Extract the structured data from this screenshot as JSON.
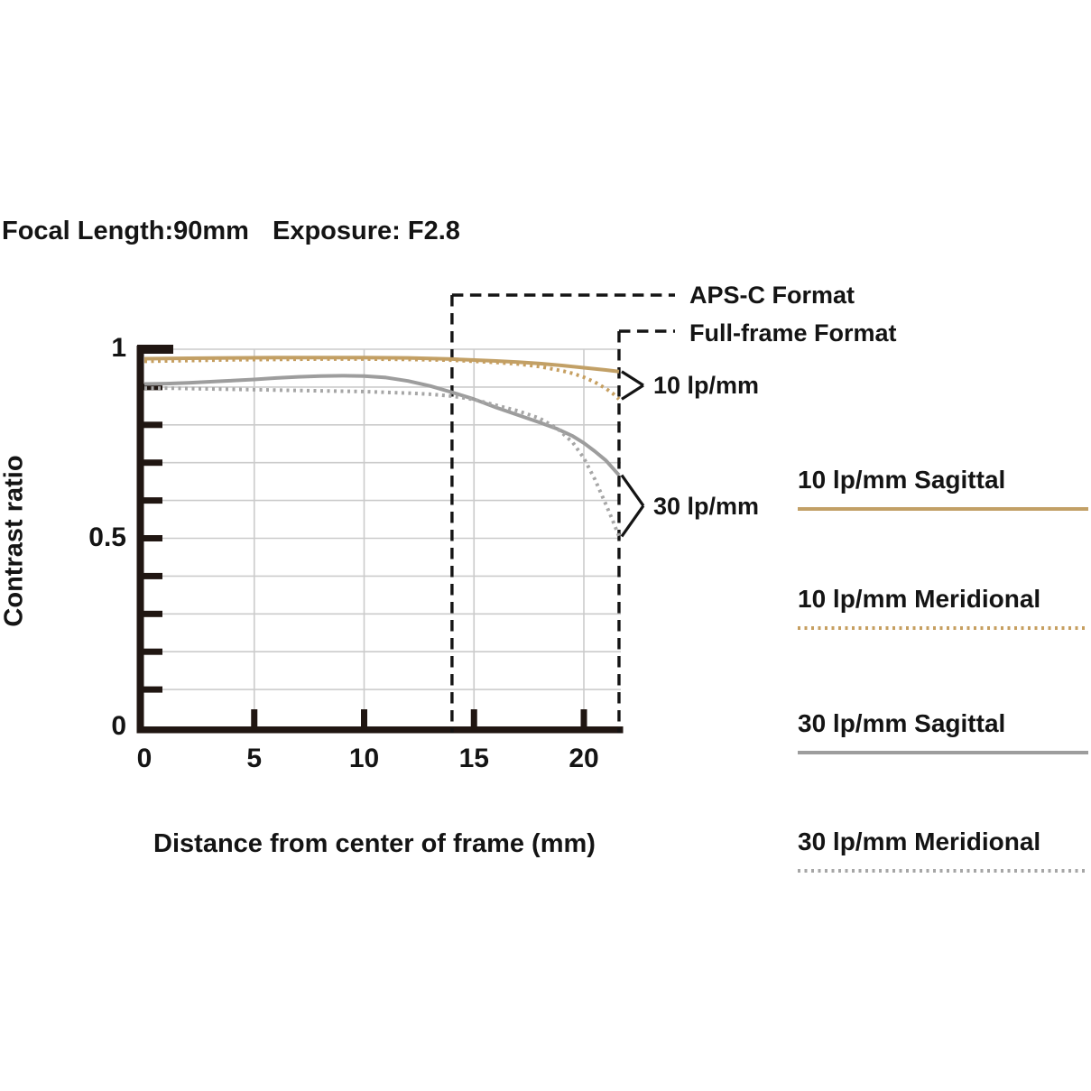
{
  "header": {
    "focal_length": "Focal Length:90mm",
    "exposure": "Exposure: F2.8"
  },
  "axis": {
    "y_label": "Contrast ratio",
    "x_label": "Distance from center of frame (mm)"
  },
  "format_markers": [
    {
      "label": "APS-C Format",
      "mm": 14
    },
    {
      "label": "Full-frame Format",
      "mm": 21.6
    }
  ],
  "curve_annotations": [
    {
      "label": "10 lp/mm",
      "solid_series": 0,
      "dotted_series": 1
    },
    {
      "label": "30 lp/mm",
      "solid_series": 2,
      "dotted_series": 3
    }
  ],
  "legend": {
    "items": [
      {
        "label": "10 lp/mm Sagittal",
        "style": "solid",
        "color": "#C2A066"
      },
      {
        "label": "10 lp/mm Meridional",
        "style": "dotted",
        "color": "#C69F60"
      },
      {
        "label": "30 lp/mm Sagittal",
        "style": "solid",
        "color": "#9D9D9D"
      },
      {
        "label": "30 lp/mm Meridional",
        "style": "dotted",
        "color": "#A6A6A6"
      }
    ]
  },
  "chart_data": {
    "type": "line",
    "xlabel": "Distance from center of frame (mm)",
    "ylabel": "Contrast ratio",
    "xlim": [
      0,
      21.7
    ],
    "ylim": [
      0,
      1
    ],
    "grid": true,
    "x_ticks": [
      {
        "value": 0,
        "label": "0"
      },
      {
        "value": 5,
        "label": "5"
      },
      {
        "value": 10,
        "label": "10"
      },
      {
        "value": 15,
        "label": "15"
      },
      {
        "value": 20,
        "label": "20"
      }
    ],
    "y_ticks": [
      {
        "value": 1,
        "label": "1"
      },
      {
        "value": 0.5,
        "label": "0.5"
      },
      {
        "value": 0,
        "label": "0"
      }
    ],
    "x_gridlines": [
      5,
      10,
      15,
      20
    ],
    "y_gridlines": [
      0.1,
      0.2,
      0.3,
      0.4,
      0.5,
      0.6,
      0.7,
      0.8,
      0.9,
      1.0
    ],
    "y_minor_ticks": [
      0.1,
      0.2,
      0.3,
      0.4,
      0.5,
      0.6,
      0.7,
      0.8,
      0.9
    ],
    "series": [
      {
        "name": "10 lp/mm Sagittal",
        "slug": "10lpmm-sagittal",
        "style": "solid",
        "color": "#C2A066",
        "x": [
          0,
          2,
          4,
          6,
          8,
          10,
          12,
          14,
          16,
          17,
          18,
          19,
          20,
          21,
          21.6
        ],
        "y": [
          0.975,
          0.976,
          0.977,
          0.978,
          0.978,
          0.978,
          0.977,
          0.974,
          0.969,
          0.966,
          0.962,
          0.957,
          0.951,
          0.945,
          0.941
        ]
      },
      {
        "name": "10 lp/mm Meridional",
        "slug": "10lpmm-meridional",
        "style": "dotted",
        "color": "#C69F60",
        "x": [
          0,
          2,
          4,
          6,
          8,
          10,
          12,
          14,
          16,
          17,
          18,
          19,
          19.5,
          20,
          20.5,
          21,
          21.3,
          21.6
        ],
        "y": [
          0.968,
          0.97,
          0.972,
          0.973,
          0.974,
          0.974,
          0.973,
          0.971,
          0.965,
          0.961,
          0.954,
          0.943,
          0.936,
          0.926,
          0.913,
          0.896,
          0.884,
          0.868
        ]
      },
      {
        "name": "30 lp/mm Sagittal",
        "slug": "30lpmm-sagittal",
        "style": "solid",
        "color": "#9D9D9D",
        "x": [
          0,
          1,
          2,
          3,
          4,
          5,
          6,
          7,
          8,
          9,
          10,
          11,
          12,
          13,
          14,
          15,
          16,
          17,
          18,
          18.8,
          19.5,
          20,
          20.5,
          21,
          21.6
        ],
        "y": [
          0.908,
          0.909,
          0.911,
          0.914,
          0.917,
          0.92,
          0.924,
          0.927,
          0.929,
          0.93,
          0.929,
          0.925,
          0.916,
          0.903,
          0.886,
          0.868,
          0.846,
          0.826,
          0.806,
          0.789,
          0.77,
          0.752,
          0.73,
          0.706,
          0.667
        ]
      },
      {
        "name": "30 lp/mm Meridional",
        "slug": "30lpmm-meridional",
        "style": "dotted",
        "color": "#A6A6A6",
        "x": [
          0,
          1,
          2,
          3,
          4,
          5,
          6,
          8,
          10,
          12,
          13,
          14,
          15,
          16,
          17,
          18,
          18.8,
          19.5,
          20,
          20.5,
          21,
          21.3,
          21.6
        ],
        "y": [
          0.897,
          0.897,
          0.896,
          0.895,
          0.894,
          0.893,
          0.892,
          0.89,
          0.888,
          0.884,
          0.881,
          0.876,
          0.867,
          0.852,
          0.837,
          0.817,
          0.79,
          0.753,
          0.712,
          0.656,
          0.59,
          0.549,
          0.505
        ]
      }
    ],
    "colors": {
      "axis": "#201612",
      "gridline": "#CBCBCB",
      "dashed_marker": "#141414",
      "tan": "#C2A066",
      "gray": "#9D9D9D"
    }
  }
}
